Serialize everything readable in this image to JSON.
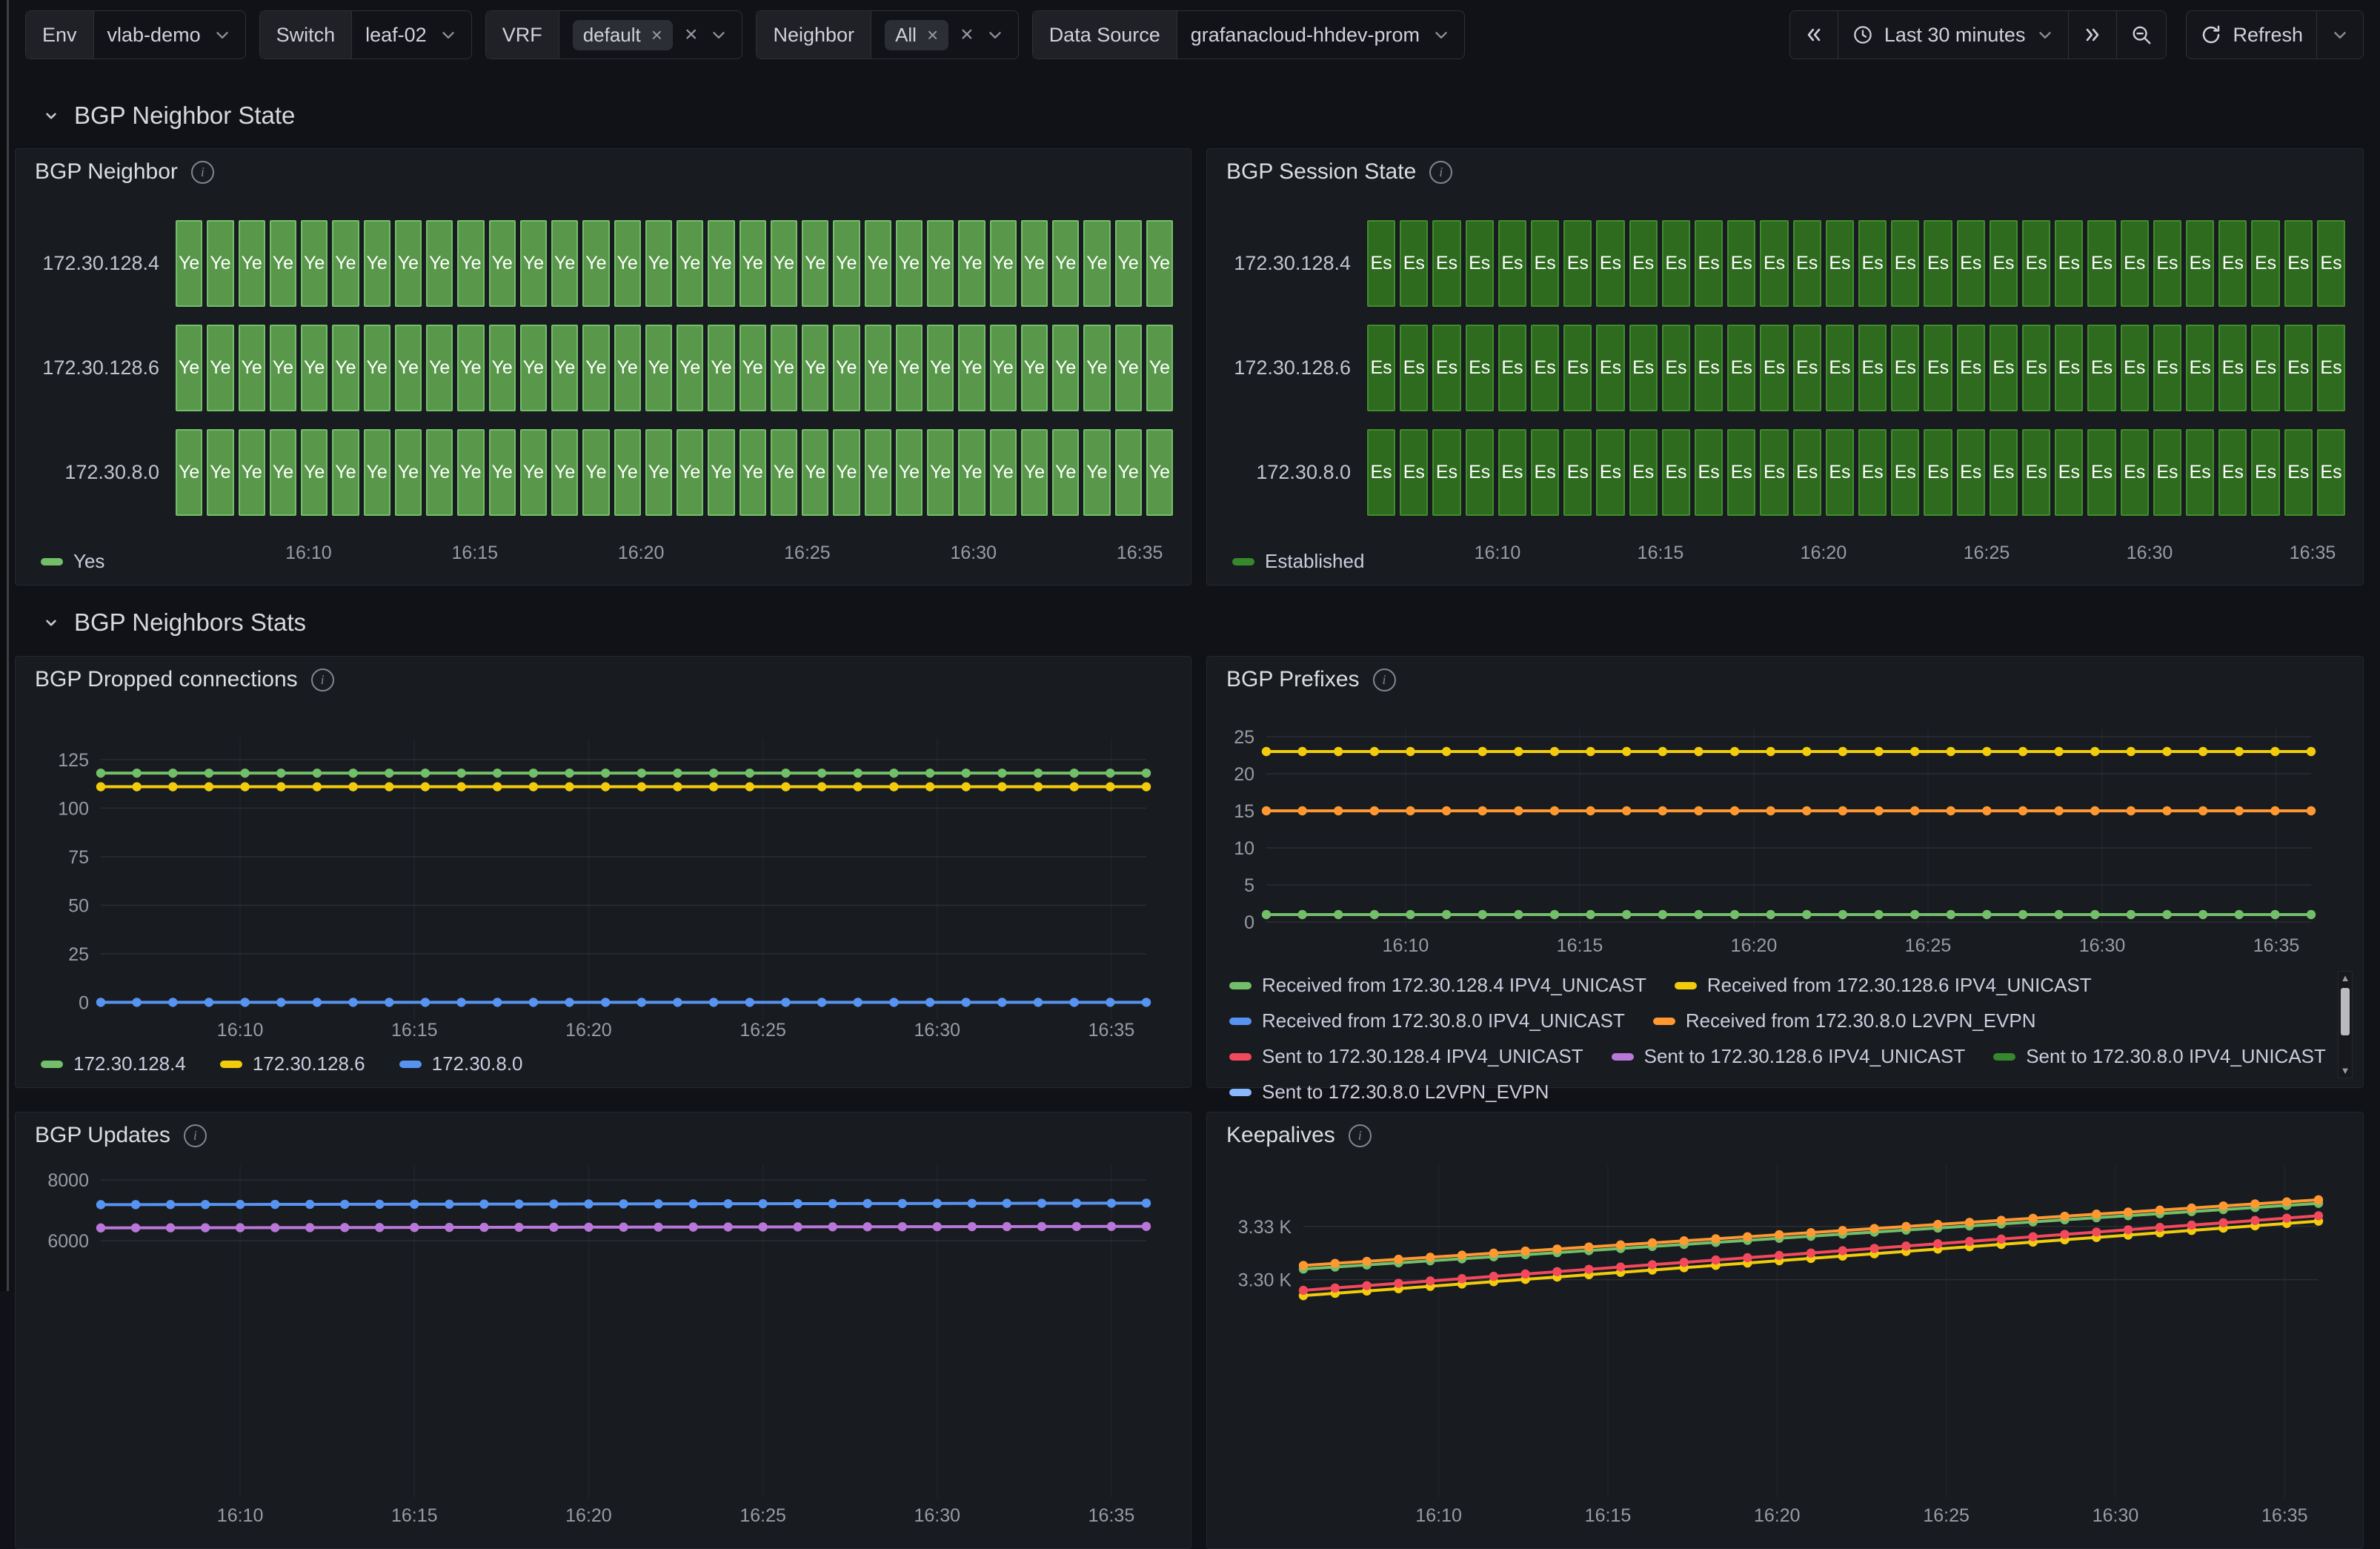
{
  "icons": {
    "remove": "×",
    "scroll_up": "▲",
    "scroll_down": "▼"
  },
  "toolbar": {
    "variables": [
      {
        "label": "Env",
        "value": "vlab-demo"
      },
      {
        "label": "Switch",
        "value": "leaf-02"
      },
      {
        "label": "VRF",
        "chips": [
          "default"
        ]
      },
      {
        "label": "Neighbor",
        "chips": [
          "All"
        ]
      },
      {
        "label": "Data Source",
        "value": "grafanacloud-hhdev-prom"
      }
    ],
    "time_range": "Last 30 minutes",
    "refresh_label": "Refresh"
  },
  "sections": [
    {
      "title": "BGP Neighbor State"
    },
    {
      "title": "BGP Neighbors Stats"
    }
  ],
  "panels": [
    {
      "title": "BGP Neighbor"
    },
    {
      "title": "BGP Session State"
    },
    {
      "title": "BGP Dropped connections"
    },
    {
      "title": "BGP Prefixes"
    },
    {
      "title": "BGP Updates"
    },
    {
      "title": "Keepalives"
    }
  ],
  "chart_data": [
    {
      "panel": "BGP Neighbor",
      "type": "state-timeline",
      "rows": [
        "172.30.128.4",
        "172.30.128.6",
        "172.30.8.0"
      ],
      "state_value": "Yes",
      "cell_label": "Ye",
      "cells_per_row": 32,
      "xticks": [
        "16:10",
        "16:15",
        "16:20",
        "16:25",
        "16:30",
        "16:35"
      ],
      "cell_fill": "#59984a",
      "cell_border": "#73bf69",
      "legend": [
        {
          "label": "Yes",
          "color": "#73bf69"
        }
      ]
    },
    {
      "panel": "BGP Session State",
      "type": "state-timeline",
      "rows": [
        "172.30.128.4",
        "172.30.128.6",
        "172.30.8.0"
      ],
      "state_value": "Established",
      "cell_label": "Es",
      "cells_per_row": 30,
      "xticks": [
        "16:10",
        "16:15",
        "16:20",
        "16:25",
        "16:30",
        "16:35"
      ],
      "cell_fill": "#2e6b1f",
      "cell_border": "#3f8d2b",
      "legend": [
        {
          "label": "Established",
          "color": "#37872d"
        }
      ]
    },
    {
      "panel": "BGP Dropped connections",
      "type": "timeseries",
      "ylim": [
        -9,
        136
      ],
      "yticks": [
        {
          "v": 0,
          "label": "0"
        },
        {
          "v": 25,
          "label": "25"
        },
        {
          "v": 50,
          "label": "50"
        },
        {
          "v": 75,
          "label": "75"
        },
        {
          "v": 100,
          "label": "100"
        },
        {
          "v": 125,
          "label": "125"
        }
      ],
      "xticks": [
        "16:10",
        "16:15",
        "16:20",
        "16:25",
        "16:30",
        "16:35"
      ],
      "npoints": 30,
      "series": [
        {
          "name": "172.30.128.4",
          "color": "#73bf69",
          "start": 118,
          "end": 118
        },
        {
          "name": "172.30.128.6",
          "color": "#f2cc0c",
          "start": 111,
          "end": 111
        },
        {
          "name": "172.30.8.0",
          "color": "#5794f2",
          "start": 0,
          "end": 0
        }
      ],
      "legend": [
        {
          "label": "172.30.128.4",
          "color": "#73bf69"
        },
        {
          "label": "172.30.128.6",
          "color": "#f2cc0c"
        },
        {
          "label": "172.30.8.0",
          "color": "#5794f2"
        }
      ]
    },
    {
      "panel": "BGP Prefixes",
      "type": "timeseries",
      "ylim": [
        -0.7,
        26.3
      ],
      "yticks": [
        {
          "v": 0,
          "label": "0"
        },
        {
          "v": 5,
          "label": "5"
        },
        {
          "v": 10,
          "label": "10"
        },
        {
          "v": 15,
          "label": "15"
        },
        {
          "v": 20,
          "label": "20"
        },
        {
          "v": 25,
          "label": "25"
        }
      ],
      "xticks": [
        "16:10",
        "16:15",
        "16:20",
        "16:25",
        "16:30",
        "16:35"
      ],
      "npoints": 30,
      "series": [
        {
          "name": "Received from 172.30.128.4 IPV4_UNICAST",
          "color": "#73bf69",
          "start": 1,
          "end": 1
        },
        {
          "name": "Received from 172.30.8.0 L2VPN_EVPN",
          "color": "#ff9830",
          "start": 15,
          "end": 15
        },
        {
          "name": "Received from 172.30.128.6 IPV4_UNICAST",
          "color": "#f2cc0c",
          "start": 23,
          "end": 23
        }
      ],
      "legend_rows": [
        [
          {
            "label": "Received from 172.30.128.4 IPV4_UNICAST",
            "color": "#73bf69"
          },
          {
            "label": "Received from 172.30.128.6 IPV4_UNICAST",
            "color": "#f2cc0c"
          }
        ],
        [
          {
            "label": "Received from 172.30.8.0 IPV4_UNICAST",
            "color": "#5794f2"
          },
          {
            "label": "Received from 172.30.8.0 L2VPN_EVPN",
            "color": "#ff9830"
          }
        ],
        [
          {
            "label": "Sent to 172.30.128.4 IPV4_UNICAST",
            "color": "#f2495c"
          },
          {
            "label": "Sent to 172.30.128.6 IPV4_UNICAST",
            "color": "#b877d9"
          },
          {
            "label": "Sent to 172.30.8.0 IPV4_UNICAST",
            "color": "#37872d"
          }
        ],
        [
          {
            "label": "Sent to 172.30.8.0 L2VPN_EVPN",
            "color": "#8ab8ff"
          }
        ]
      ]
    },
    {
      "panel": "BGP Updates",
      "type": "timeseries",
      "ylim": [
        -2468,
        8512
      ],
      "yticks": [
        {
          "v": 8000,
          "label": "8000"
        },
        {
          "v": 6000,
          "label": "6000"
        }
      ],
      "xticks": [
        "16:10",
        "16:15",
        "16:20",
        "16:25",
        "16:30",
        "16:35"
      ],
      "npoints": 31,
      "series": [
        {
          "name": "",
          "color": "#b877d9",
          "start": 6420,
          "end": 6470
        },
        {
          "name": "",
          "color": "#5794f2",
          "start": 7185,
          "end": 7235
        }
      ]
    },
    {
      "panel": "Keepalives",
      "type": "timeseries",
      "ylim": [
        3177,
        3365
      ],
      "yticks": [
        {
          "v": 3330,
          "label": "3.33 K"
        },
        {
          "v": 3300,
          "label": "3.30 K"
        }
      ],
      "xticks": [
        "16:10",
        "16:15",
        "16:20",
        "16:25",
        "16:30",
        "16:35"
      ],
      "npoints": 33,
      "series": [
        {
          "name": "",
          "color": "#73bf69",
          "start": 3306,
          "end": 3343
        },
        {
          "name": "",
          "color": "#ff9830",
          "start": 3308,
          "end": 3345
        },
        {
          "name": "",
          "color": "#f2cc0c",
          "start": 3291,
          "end": 3333
        },
        {
          "name": "",
          "color": "#f2495c",
          "start": 3294,
          "end": 3336
        }
      ]
    }
  ]
}
